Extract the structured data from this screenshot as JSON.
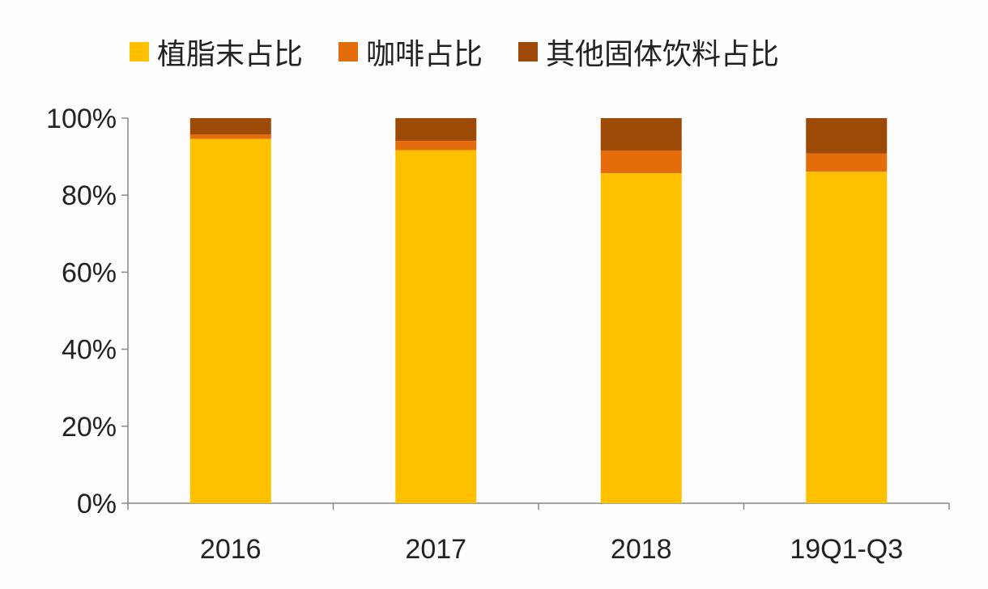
{
  "chart_data": {
    "type": "bar",
    "stacked": true,
    "categories": [
      "2016",
      "2017",
      "2018",
      "19Q1-Q3"
    ],
    "series": [
      {
        "name": "植脂末占比",
        "color": "#FFC000",
        "values": [
          94.6,
          91.7,
          85.7,
          86.1
        ]
      },
      {
        "name": "咖啡占比",
        "color": "#E46C0A",
        "values": [
          1.2,
          2.4,
          5.9,
          4.7
        ]
      },
      {
        "name": "其他固体饮料占比",
        "color": "#9C4A06",
        "values": [
          4.2,
          5.9,
          8.4,
          9.2
        ]
      }
    ],
    "ylim": [
      0,
      100
    ],
    "yticks": [
      "0%",
      "20%",
      "40%",
      "60%",
      "80%",
      "100%"
    ],
    "title": "",
    "xlabel": "",
    "ylabel": "",
    "legend": "top",
    "grid": false
  }
}
